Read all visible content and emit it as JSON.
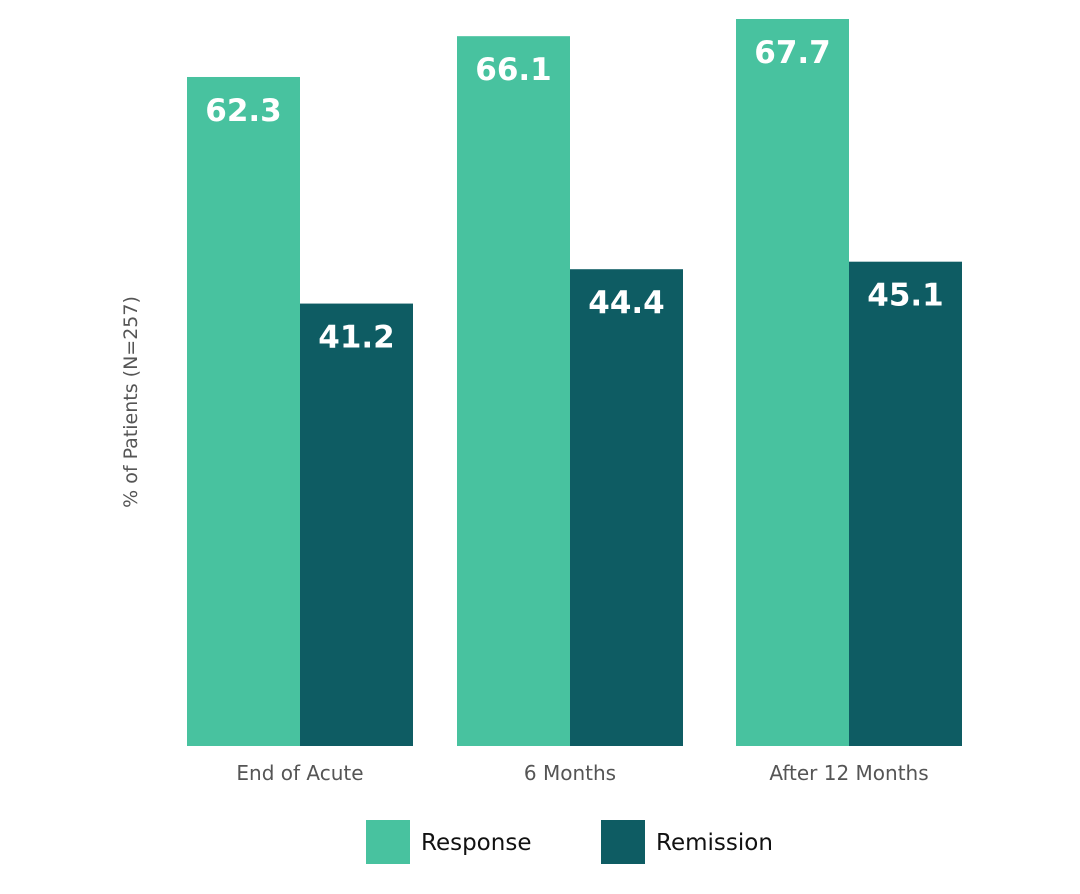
{
  "chart_data": {
    "type": "bar",
    "categories": [
      "End of Acute",
      "6 Months",
      "After 12 Months"
    ],
    "series": [
      {
        "name": "Response",
        "values": [
          62.3,
          66.1,
          67.7
        ],
        "color": "#48c29f"
      },
      {
        "name": "Remission",
        "values": [
          41.2,
          44.4,
          45.1
        ],
        "color": "#0e5c63"
      }
    ],
    "title": "",
    "xlabel": "",
    "ylabel": "% of Patients (N=257)",
    "ylim": [
      0,
      69
    ],
    "grid": false,
    "legend_position": "bottom"
  }
}
